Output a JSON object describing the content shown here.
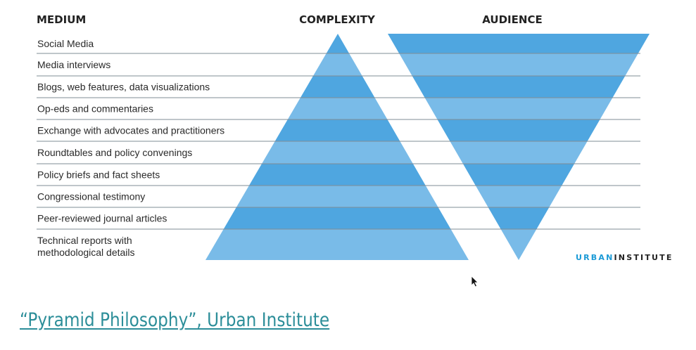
{
  "headers": {
    "medium": "MEDIUM",
    "complexity": "COMPLEXITY",
    "audience": "AUDIENCE"
  },
  "rows": [
    "Social Media",
    "Media interviews",
    "Blogs, web features, data visualizations",
    "Op-eds and commentaries",
    "Exchange with advocates and practitioners",
    "Roundtables and policy convenings",
    "Policy briefs and fact sheets",
    "Congressional testimony",
    "Peer-reviewed journal articles",
    [
      "Technical reports with",
      "methodological details"
    ]
  ],
  "logo": {
    "part1": "URBAN",
    "part2": "INSTITUTE"
  },
  "caption": {
    "text": "“Pyramid Philosophy”, Urban Institute"
  },
  "colors": {
    "band_dark": "#4fa6e0",
    "band_light": "#79bbe8",
    "divider": "#7f8c96",
    "logo_accent": "#1b9ad6",
    "caption": "#2c8e99"
  }
}
